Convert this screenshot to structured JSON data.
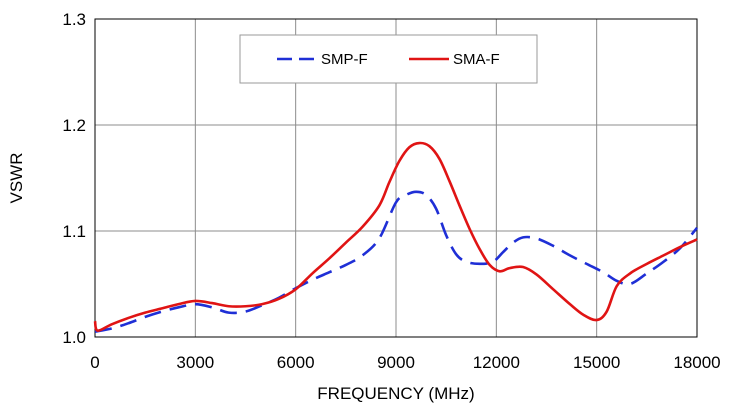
{
  "chart_data": {
    "type": "line",
    "title": "",
    "xlabel": "FREQUENCY (MHz)",
    "ylabel": "VSWR",
    "xlim": [
      0,
      18000
    ],
    "ylim": [
      1.0,
      1.3
    ],
    "x_ticks": [
      0,
      3000,
      6000,
      9000,
      12000,
      15000,
      18000
    ],
    "x_tick_labels": [
      "0",
      "3000",
      "6000",
      "9000",
      "12000",
      "15000",
      "18000"
    ],
    "y_ticks": [
      1.0,
      1.1,
      1.2,
      1.3
    ],
    "y_tick_labels": [
      "1.0",
      "1.1",
      "1.2",
      "1.3"
    ],
    "grid": true,
    "legend_position": "top-center",
    "series": [
      {
        "name": "SMP-F",
        "color": "#1f2fd6",
        "style": "dashed",
        "points": [
          [
            0,
            1.005
          ],
          [
            500,
            1.008
          ],
          [
            1000,
            1.013
          ],
          [
            1500,
            1.019
          ],
          [
            2000,
            1.024
          ],
          [
            2500,
            1.028
          ],
          [
            3000,
            1.031
          ],
          [
            3500,
            1.028
          ],
          [
            4000,
            1.023
          ],
          [
            4500,
            1.024
          ],
          [
            5000,
            1.03
          ],
          [
            5500,
            1.037
          ],
          [
            6000,
            1.046
          ],
          [
            6500,
            1.054
          ],
          [
            7000,
            1.061
          ],
          [
            7500,
            1.068
          ],
          [
            8000,
            1.077
          ],
          [
            8500,
            1.093
          ],
          [
            9000,
            1.127
          ],
          [
            9300,
            1.134
          ],
          [
            9600,
            1.137
          ],
          [
            9900,
            1.134
          ],
          [
            10200,
            1.121
          ],
          [
            10500,
            1.096
          ],
          [
            10800,
            1.078
          ],
          [
            11100,
            1.071
          ],
          [
            11500,
            1.069
          ],
          [
            11900,
            1.071
          ],
          [
            12200,
            1.08
          ],
          [
            12500,
            1.089
          ],
          [
            12800,
            1.094
          ],
          [
            13200,
            1.093
          ],
          [
            13700,
            1.086
          ],
          [
            14200,
            1.077
          ],
          [
            14700,
            1.069
          ],
          [
            15200,
            1.061
          ],
          [
            15600,
            1.053
          ],
          [
            16000,
            1.05
          ],
          [
            16500,
            1.06
          ],
          [
            17000,
            1.071
          ],
          [
            17500,
            1.084
          ],
          [
            18000,
            1.103
          ]
        ]
      },
      {
        "name": "SMA-F",
        "color": "#e01414",
        "style": "solid",
        "points": [
          [
            0,
            1.015
          ],
          [
            80,
            1.006
          ],
          [
            500,
            1.012
          ],
          [
            1000,
            1.018
          ],
          [
            1500,
            1.023
          ],
          [
            2000,
            1.027
          ],
          [
            2500,
            1.031
          ],
          [
            3000,
            1.034
          ],
          [
            3500,
            1.032
          ],
          [
            4000,
            1.029
          ],
          [
            4500,
            1.029
          ],
          [
            5000,
            1.031
          ],
          [
            5500,
            1.036
          ],
          [
            6000,
            1.045
          ],
          [
            6500,
            1.06
          ],
          [
            7000,
            1.074
          ],
          [
            7500,
            1.089
          ],
          [
            8000,
            1.104
          ],
          [
            8500,
            1.124
          ],
          [
            8800,
            1.146
          ],
          [
            9100,
            1.166
          ],
          [
            9400,
            1.179
          ],
          [
            9700,
            1.183
          ],
          [
            10000,
            1.18
          ],
          [
            10300,
            1.168
          ],
          [
            10600,
            1.147
          ],
          [
            10900,
            1.124
          ],
          [
            11200,
            1.102
          ],
          [
            11500,
            1.083
          ],
          [
            11800,
            1.068
          ],
          [
            12100,
            1.062
          ],
          [
            12400,
            1.065
          ],
          [
            12800,
            1.066
          ],
          [
            13200,
            1.059
          ],
          [
            13700,
            1.045
          ],
          [
            14200,
            1.031
          ],
          [
            14600,
            1.021
          ],
          [
            15000,
            1.016
          ],
          [
            15300,
            1.024
          ],
          [
            15600,
            1.048
          ],
          [
            16000,
            1.06
          ],
          [
            16500,
            1.069
          ],
          [
            17000,
            1.077
          ],
          [
            17500,
            1.085
          ],
          [
            18000,
            1.092
          ]
        ]
      }
    ]
  }
}
